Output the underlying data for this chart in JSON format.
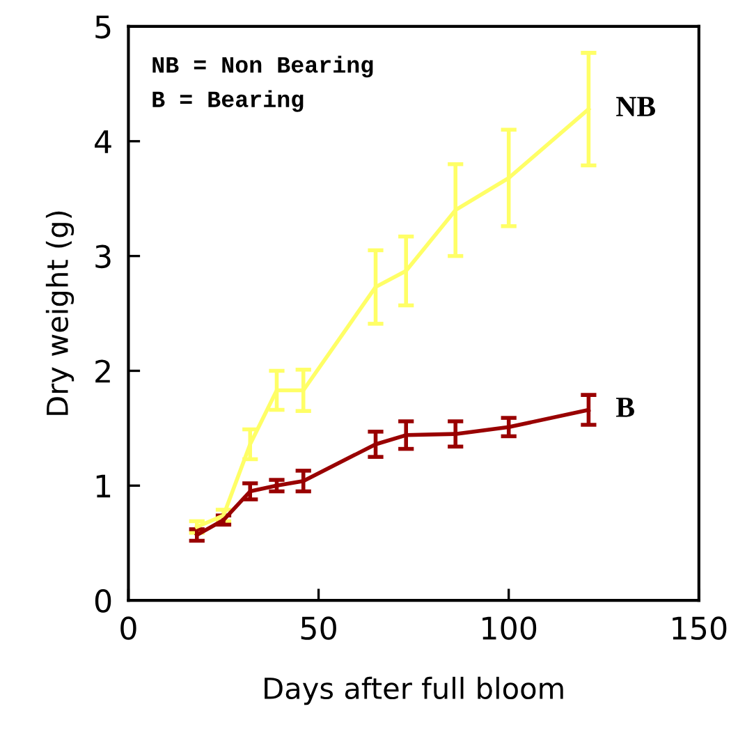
{
  "chart_data": {
    "type": "line",
    "xlabel": "Days after full bloom",
    "ylabel": "Dry weight (g)",
    "x": [
      18,
      25,
      32,
      39,
      46,
      65,
      73,
      86,
      100,
      121
    ],
    "series": [
      {
        "name": "NB",
        "color": "#ffff66",
        "values": [
          0.64,
          0.74,
          1.36,
          1.83,
          1.83,
          2.73,
          2.87,
          3.4,
          3.68,
          4.28
        ],
        "errors": [
          0.05,
          0.05,
          0.13,
          0.17,
          0.18,
          0.32,
          0.3,
          0.4,
          0.42,
          0.49
        ]
      },
      {
        "name": "B",
        "color": "#990000",
        "values": [
          0.57,
          0.7,
          0.95,
          1.0,
          1.04,
          1.36,
          1.44,
          1.45,
          1.51,
          1.66
        ],
        "errors": [
          0.05,
          0.04,
          0.07,
          0.05,
          0.09,
          0.11,
          0.12,
          0.11,
          0.08,
          0.13
        ]
      }
    ],
    "annotations": [
      "NB = Non Bearing",
      "B = Bearing"
    ],
    "xlim": [
      0,
      150
    ],
    "xticks": [
      0,
      50,
      100,
      150
    ],
    "ylim": [
      0,
      5
    ],
    "yticks": [
      0,
      1,
      2,
      3,
      4,
      5
    ],
    "grid": false,
    "legend": false
  }
}
